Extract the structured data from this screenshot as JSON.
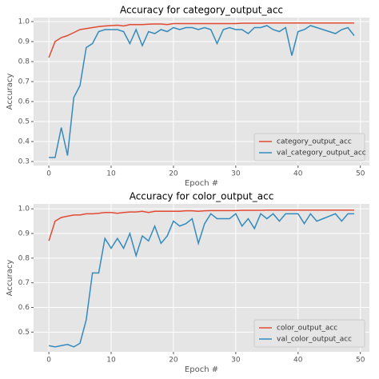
{
  "chart_data": [
    {
      "type": "line",
      "title": "Accuracy for category_output_acc",
      "x_label": "Epoch #",
      "y_label": "Accuracy",
      "x": [
        0,
        1,
        2,
        3,
        4,
        5,
        6,
        7,
        8,
        9,
        10,
        11,
        12,
        13,
        14,
        15,
        16,
        17,
        18,
        19,
        20,
        21,
        22,
        23,
        24,
        25,
        26,
        27,
        28,
        29,
        30,
        31,
        32,
        33,
        34,
        35,
        36,
        37,
        38,
        39,
        40,
        41,
        42,
        43,
        44,
        45,
        46,
        47,
        48,
        49
      ],
      "series": [
        {
          "name": "category_output_acc",
          "color": "#E24A33",
          "values": [
            0.82,
            0.9,
            0.92,
            0.93,
            0.945,
            0.96,
            0.965,
            0.97,
            0.975,
            0.978,
            0.98,
            0.982,
            0.978,
            0.985,
            0.985,
            0.985,
            0.987,
            0.988,
            0.988,
            0.985,
            0.99,
            0.99,
            0.99,
            0.99,
            0.99,
            0.99,
            0.99,
            0.99,
            0.99,
            0.99,
            0.99,
            0.992,
            0.992,
            0.992,
            0.992,
            0.993,
            0.993,
            0.993,
            0.993,
            0.993,
            0.993,
            0.993,
            0.993,
            0.993,
            0.993,
            0.993,
            0.993,
            0.993,
            0.993,
            0.993
          ]
        },
        {
          "name": "val_category_output_acc",
          "color": "#348ABD",
          "values": [
            0.32,
            0.32,
            0.47,
            0.33,
            0.62,
            0.68,
            0.87,
            0.89,
            0.95,
            0.96,
            0.96,
            0.96,
            0.95,
            0.89,
            0.96,
            0.88,
            0.95,
            0.94,
            0.96,
            0.95,
            0.97,
            0.96,
            0.97,
            0.97,
            0.96,
            0.97,
            0.96,
            0.89,
            0.96,
            0.97,
            0.96,
            0.96,
            0.94,
            0.97,
            0.97,
            0.98,
            0.96,
            0.95,
            0.97,
            0.83,
            0.95,
            0.96,
            0.98,
            0.97,
            0.96,
            0.95,
            0.94,
            0.96,
            0.97,
            0.93
          ]
        }
      ],
      "xlim": [
        -2.45,
        51.45
      ],
      "xticks": [
        0,
        10,
        20,
        30,
        40,
        50
      ],
      "ylim": [
        0.28,
        1.02
      ],
      "yticks": [
        0.3,
        0.4,
        0.5,
        0.6,
        0.7,
        0.8,
        0.9,
        {
          "value": 1,
          "label": "1.0"
        }
      ],
      "grid": true,
      "legend": "lower right"
    },
    {
      "type": "line",
      "title": "Accuracy for color_output_acc",
      "x_label": "Epoch #",
      "y_label": "Accuracy",
      "x": [
        0,
        1,
        2,
        3,
        4,
        5,
        6,
        7,
        8,
        9,
        10,
        11,
        12,
        13,
        14,
        15,
        16,
        17,
        18,
        19,
        20,
        21,
        22,
        23,
        24,
        25,
        26,
        27,
        28,
        29,
        30,
        31,
        32,
        33,
        34,
        35,
        36,
        37,
        38,
        39,
        40,
        41,
        42,
        43,
        44,
        45,
        46,
        47,
        48,
        49
      ],
      "series": [
        {
          "name": "color_output_acc",
          "color": "#E24A33",
          "values": [
            0.87,
            0.95,
            0.965,
            0.97,
            0.975,
            0.975,
            0.98,
            0.98,
            0.982,
            0.985,
            0.985,
            0.982,
            0.985,
            0.987,
            0.987,
            0.99,
            0.985,
            0.99,
            0.99,
            0.99,
            0.99,
            0.99,
            0.992,
            0.992,
            0.99,
            0.992,
            0.993,
            0.993,
            0.993,
            0.993,
            0.993,
            0.994,
            0.994,
            0.994,
            0.994,
            0.995,
            0.995,
            0.995,
            0.995,
            0.995,
            0.995,
            0.995,
            0.995,
            0.995,
            0.995,
            0.995,
            0.995,
            0.995,
            0.995,
            0.995
          ]
        },
        {
          "name": "val_color_output_acc",
          "color": "#348ABD",
          "values": [
            0.445,
            0.44,
            0.445,
            0.45,
            0.44,
            0.455,
            0.55,
            0.74,
            0.74,
            0.88,
            0.84,
            0.88,
            0.84,
            0.9,
            0.81,
            0.89,
            0.87,
            0.93,
            0.86,
            0.89,
            0.95,
            0.93,
            0.94,
            0.96,
            0.86,
            0.94,
            0.98,
            0.96,
            0.96,
            0.96,
            0.98,
            0.93,
            0.96,
            0.92,
            0.98,
            0.96,
            0.98,
            0.95,
            0.98,
            0.98,
            0.98,
            0.94,
            0.98,
            0.95,
            0.96,
            0.97,
            0.98,
            0.95,
            0.98,
            0.98
          ]
        }
      ],
      "xlim": [
        -2.45,
        51.45
      ],
      "xticks": [
        0,
        10,
        20,
        30,
        40,
        50
      ],
      "ylim": [
        0.42,
        1.02
      ],
      "yticks": [
        0.5,
        0.6,
        0.7,
        0.8,
        0.9,
        {
          "value": 1,
          "label": "1.0"
        }
      ],
      "grid": true,
      "legend": "lower right"
    }
  ]
}
